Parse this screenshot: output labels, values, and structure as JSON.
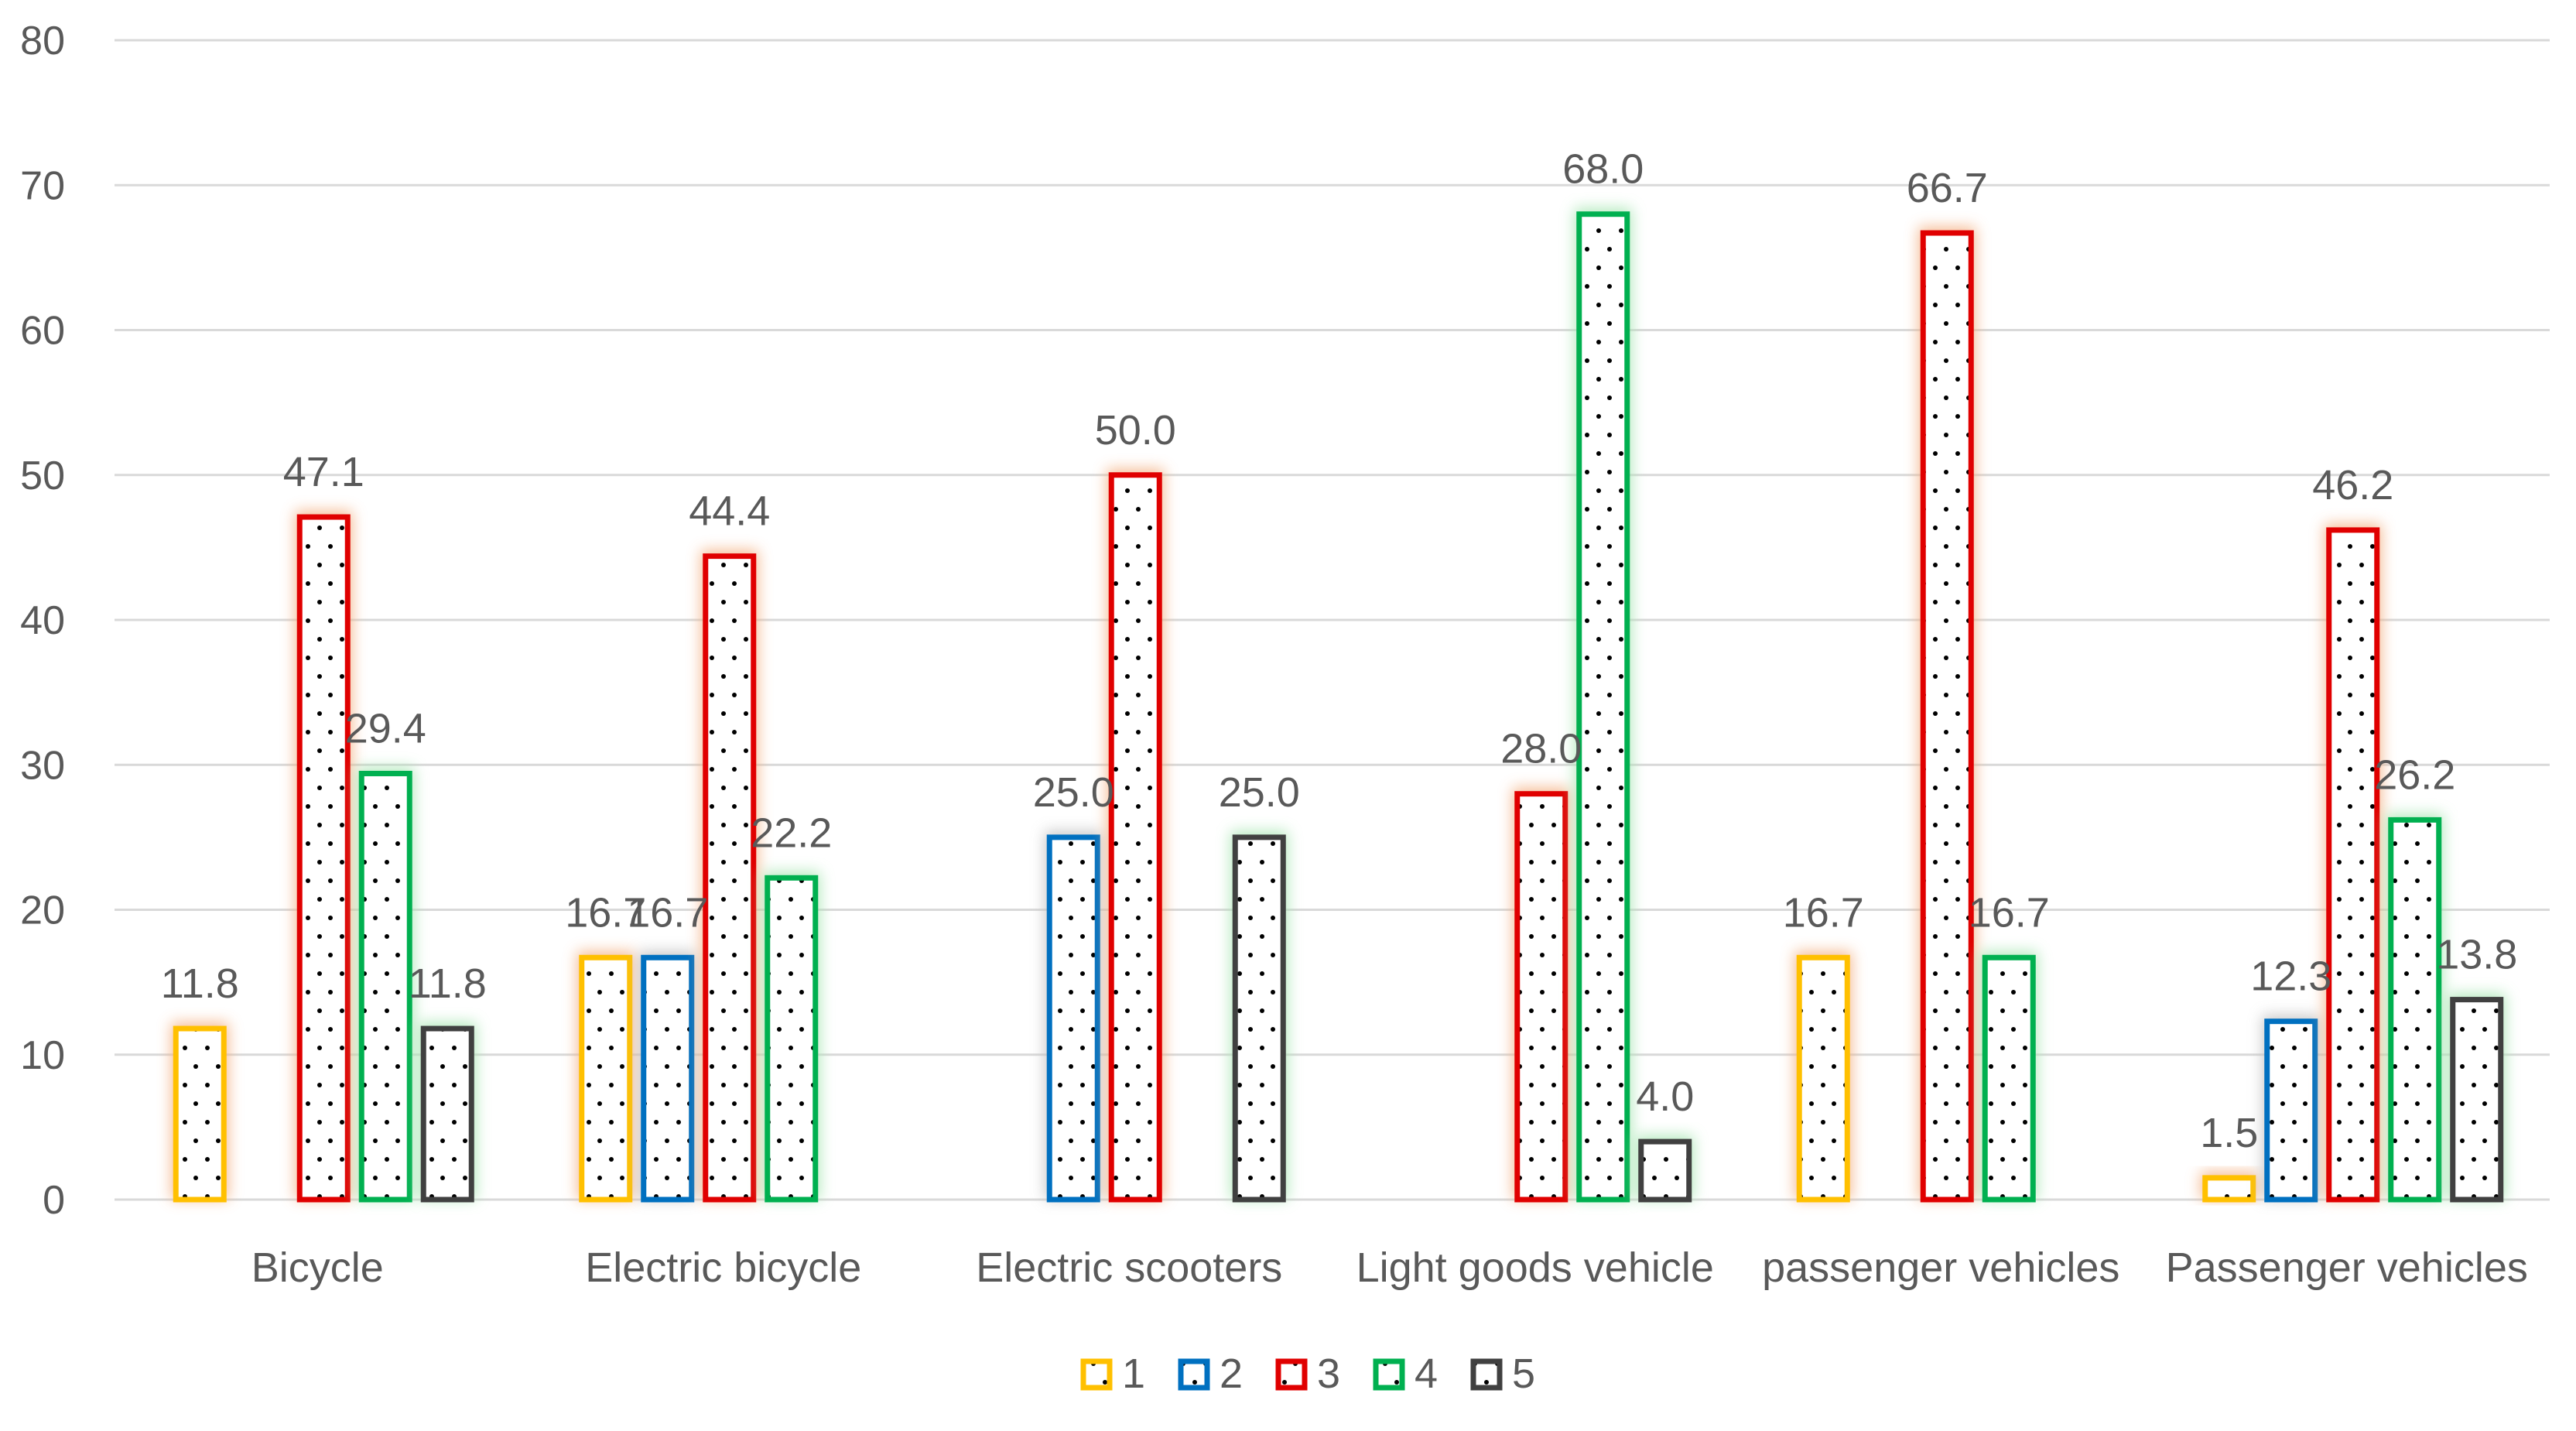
{
  "chart_data": {
    "type": "bar",
    "title": "",
    "xlabel": "",
    "ylabel": "",
    "ylim": [
      0,
      80
    ],
    "yticks": [
      0,
      10,
      20,
      30,
      40,
      50,
      60,
      70,
      80
    ],
    "grid": true,
    "legend_position": "bottom",
    "categories": [
      "Bicycle",
      "Electric bicycle",
      "Electric scooters",
      "Light goods vehicle",
      "passenger vehicles",
      "Passenger vehicles"
    ],
    "series": [
      {
        "name": "1",
        "color": "#FFC000",
        "glow": "#F4B183",
        "values": [
          11.8,
          16.7,
          null,
          null,
          16.7,
          1.5
        ]
      },
      {
        "name": "2",
        "color": "#0070C0",
        "glow": "#BFBFBF",
        "values": [
          null,
          16.7,
          25.0,
          null,
          null,
          12.3
        ]
      },
      {
        "name": "3",
        "color": "#E00000",
        "glow": "#F4B183",
        "values": [
          47.1,
          44.4,
          50.0,
          28.0,
          66.7,
          46.2
        ]
      },
      {
        "name": "4",
        "color": "#00B050",
        "glow": "#A9E6B4",
        "values": [
          29.4,
          22.2,
          null,
          68.0,
          16.7,
          26.2
        ]
      },
      {
        "name": "5",
        "color": "#404040",
        "glow": "#A9E6B4",
        "values": [
          11.8,
          null,
          25.0,
          4.0,
          null,
          13.8
        ]
      }
    ],
    "data_labels": [
      [
        "11.8",
        "16.7",
        null,
        null,
        "16.7",
        "1.5"
      ],
      [
        null,
        "16.7",
        "25.0",
        null,
        null,
        "12.3"
      ],
      [
        "47.1",
        "44.4",
        "50.0",
        "28.0",
        "66.7",
        "46.2"
      ],
      [
        "29.4",
        "22.2",
        null,
        "68.0",
        "16.7",
        "26.2"
      ],
      [
        "11.8",
        null,
        "25.0",
        "4.0",
        null,
        "13.8"
      ]
    ]
  }
}
